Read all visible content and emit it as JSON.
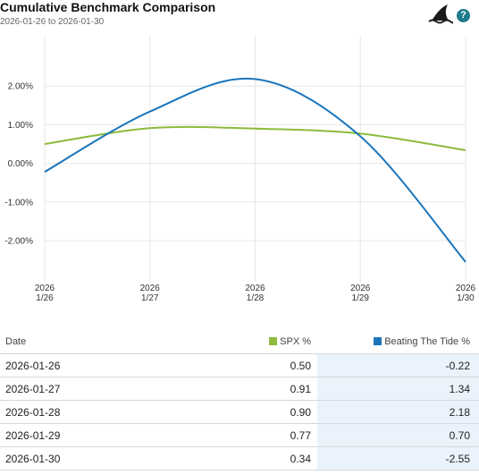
{
  "header": {
    "title": "Cumulative Benchmark Comparison",
    "subtitle": "2026-01-26 to 2026-01-30",
    "help_label": "?",
    "logo_icon": "shark-fin-icon"
  },
  "chart_data": {
    "type": "line",
    "x_labels": [
      [
        "2026",
        "1/26"
      ],
      [
        "2026",
        "1/27"
      ],
      [
        "2026",
        "1/28"
      ],
      [
        "2026",
        "1/29"
      ],
      [
        "2026",
        "1/30"
      ]
    ],
    "y_ticks": [
      2,
      1,
      0,
      -1,
      -2
    ],
    "y_tick_labels": [
      "2.00%",
      "1.00%",
      "0.00%",
      "-1.00%",
      "-2.00%"
    ],
    "ylim": [
      -2.9,
      3.3
    ],
    "grid": true,
    "series": [
      {
        "name": "SPX %",
        "color": "#8dbb3e",
        "values": [
          0.5,
          0.91,
          0.9,
          0.77,
          0.34
        ]
      },
      {
        "name": "Beating The Tide %",
        "color": "#1a75bc",
        "values": [
          -0.22,
          1.34,
          2.18,
          0.7,
          -2.55
        ]
      }
    ]
  },
  "table": {
    "headers": {
      "date": "Date",
      "spx": "SPX %",
      "btt": "Beating The Tide %"
    },
    "colors": {
      "spx": "#8dbb3e",
      "btt": "#1a75bc"
    },
    "rows": [
      {
        "date": "2026-01-26",
        "spx": "0.50",
        "btt": "-0.22"
      },
      {
        "date": "2026-01-27",
        "spx": "0.91",
        "btt": "1.34"
      },
      {
        "date": "2026-01-28",
        "spx": "0.90",
        "btt": "2.18"
      },
      {
        "date": "2026-01-29",
        "spx": "0.77",
        "btt": "0.70"
      },
      {
        "date": "2026-01-30",
        "spx": "0.34",
        "btt": "-2.55"
      }
    ]
  }
}
